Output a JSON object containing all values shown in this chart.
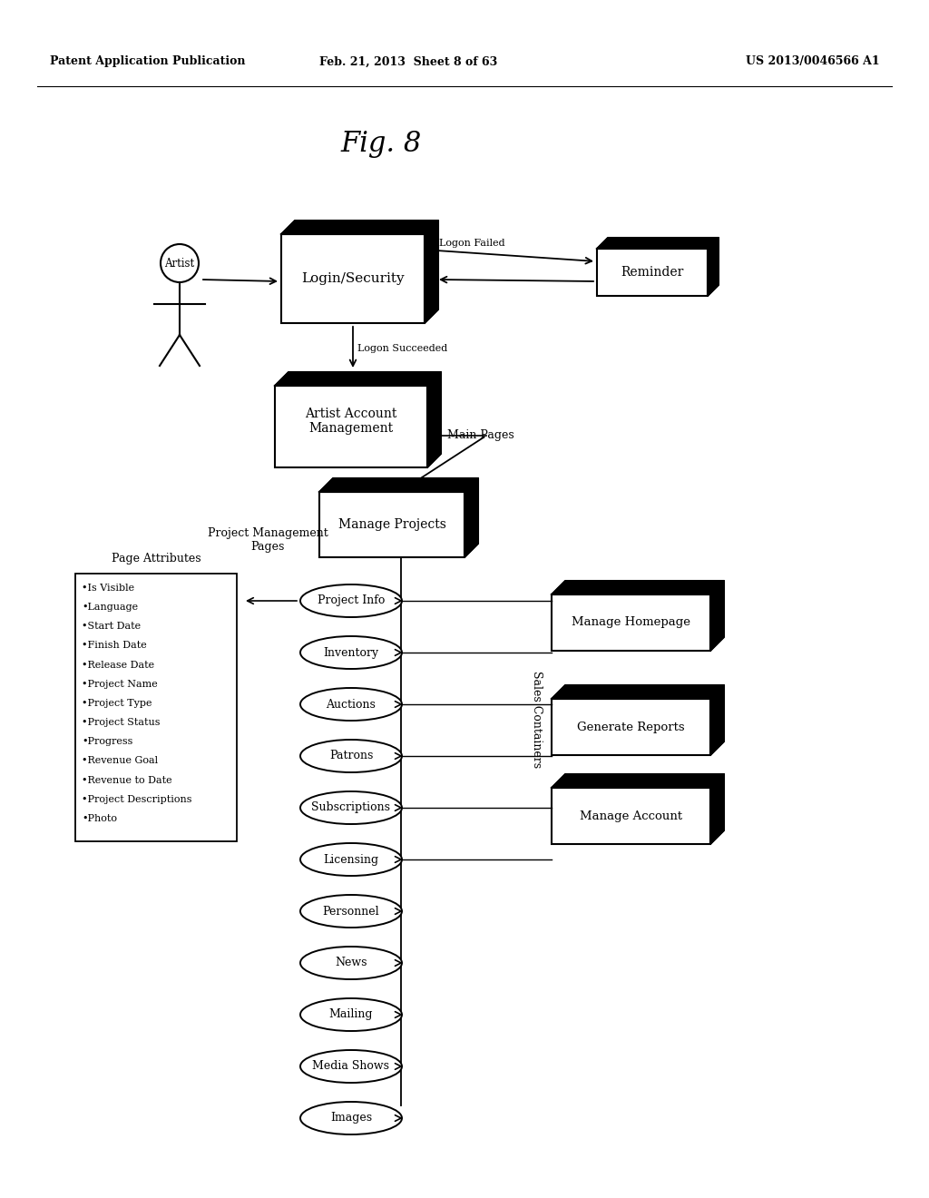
{
  "title": "Fig. 8",
  "header_left": "Patent Application Publication",
  "header_mid": "Feb. 21, 2013  Sheet 8 of 63",
  "header_right": "US 2013/0046566 A1",
  "bg_color": "#ffffff",
  "page_attributes": [
    "•Is Visible",
    "•Language",
    "•Start Date",
    "•Finish Date",
    "•Release Date",
    "•Project Name",
    "•Project Type",
    "•Project Status",
    "•Progress",
    "•Revenue Goal",
    "•Revenue to Date",
    "•Project Descriptions",
    "•Photo"
  ],
  "ellipse_labels": [
    "Project Info",
    "Inventory",
    "Auctions",
    "Patrons",
    "Subscriptions",
    "Licensing",
    "Personnel",
    "News",
    "Mailing",
    "Media Shows",
    "Images"
  ],
  "right_boxes": [
    "Manage Homepage",
    "Generate Reports",
    "Manage Account"
  ]
}
